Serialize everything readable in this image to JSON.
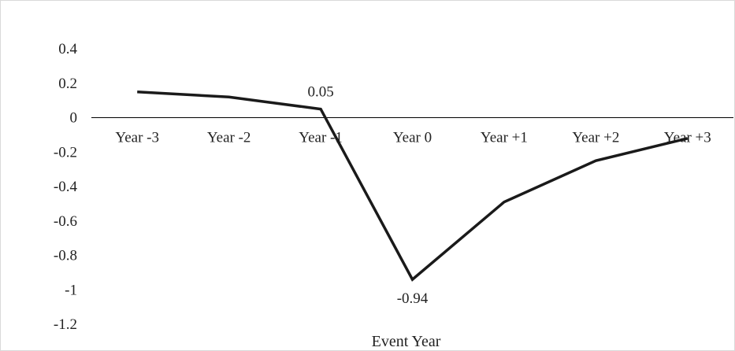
{
  "chart_data": {
    "type": "line",
    "title": "",
    "xlabel": "Event Year",
    "ylabel": "",
    "categories": [
      "Year -3",
      "Year -2",
      "Year -1",
      "Year 0",
      "Year +1",
      "Year +2",
      "Year +3"
    ],
    "series": [
      {
        "values": [
          0.15,
          0.12,
          0.05,
          -0.94,
          -0.49,
          -0.25,
          -0.12
        ]
      }
    ],
    "data_labels": [
      {
        "category": "Year -1",
        "value": 0.05,
        "text": "0.05"
      },
      {
        "category": "Year 0",
        "value": -0.94,
        "text": "-0.94"
      }
    ],
    "ylim": [
      -1.2,
      0.4
    ],
    "yticks": [
      0.4,
      0.2,
      0,
      -0.2,
      -0.4,
      -0.6,
      -0.8,
      -1,
      -1.2
    ],
    "ytick_labels": [
      "0.4",
      "0.2",
      "0",
      "-0.2",
      "-0.4",
      "-0.6",
      "-0.8",
      "-1",
      "-1.2"
    ],
    "grid": false,
    "legend": "none",
    "colors": {
      "line": "#1a1a1a",
      "axis": "#000000",
      "text": "#222222"
    }
  }
}
